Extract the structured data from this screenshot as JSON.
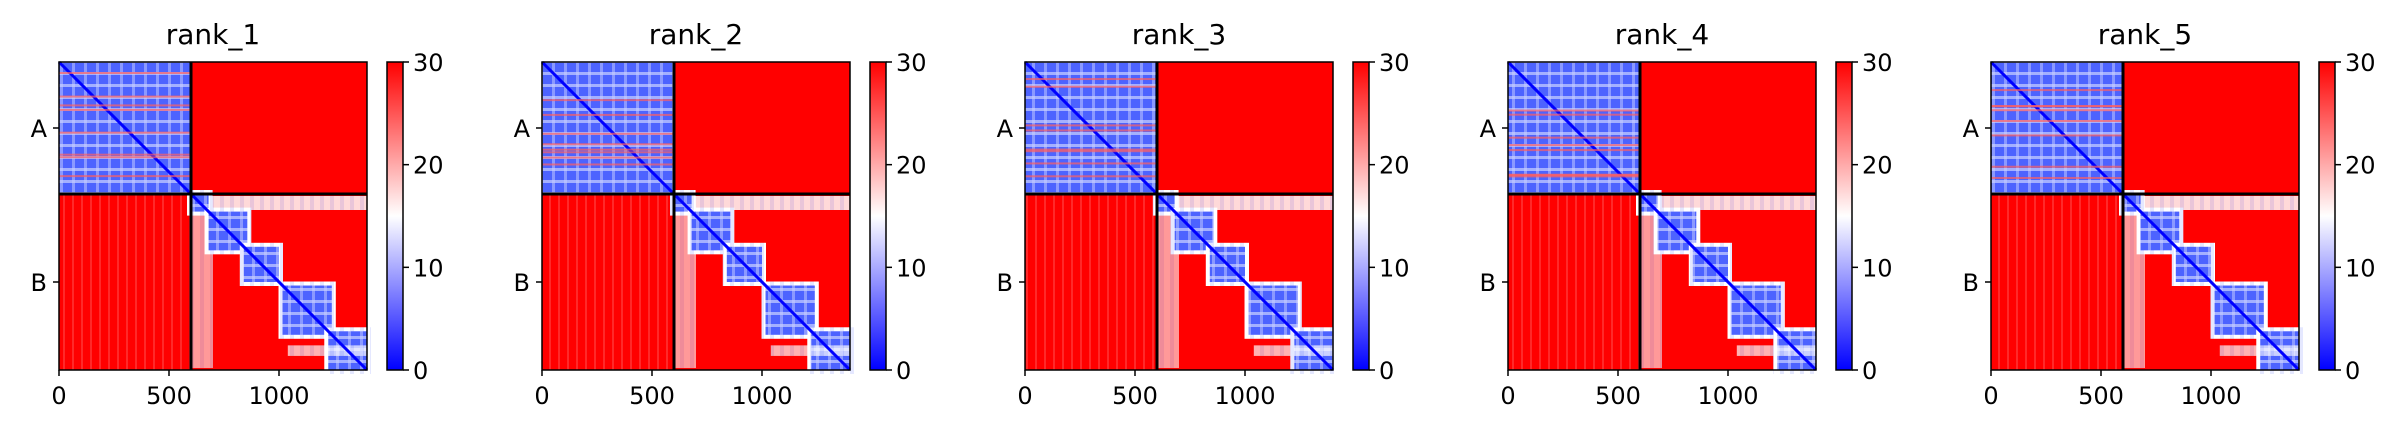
{
  "chart_data": {
    "type": "heatmap",
    "panels": [
      {
        "title": "rank_1"
      },
      {
        "title": "rank_2"
      },
      {
        "title": "rank_3"
      },
      {
        "title": "rank_4"
      },
      {
        "title": "rank_5"
      }
    ],
    "x_ticks": [
      0,
      500,
      1000
    ],
    "xlim": [
      0,
      1400
    ],
    "chain_boundary": 600,
    "y_categories": [
      "A",
      "B"
    ],
    "colorbar": {
      "ticks": [
        0,
        10,
        20,
        30
      ],
      "range": [
        0,
        30
      ],
      "colormap": "bwr",
      "colors": {
        "low": "#0000ff",
        "mid": "#ffffff",
        "high": "#ff0000"
      }
    }
  }
}
